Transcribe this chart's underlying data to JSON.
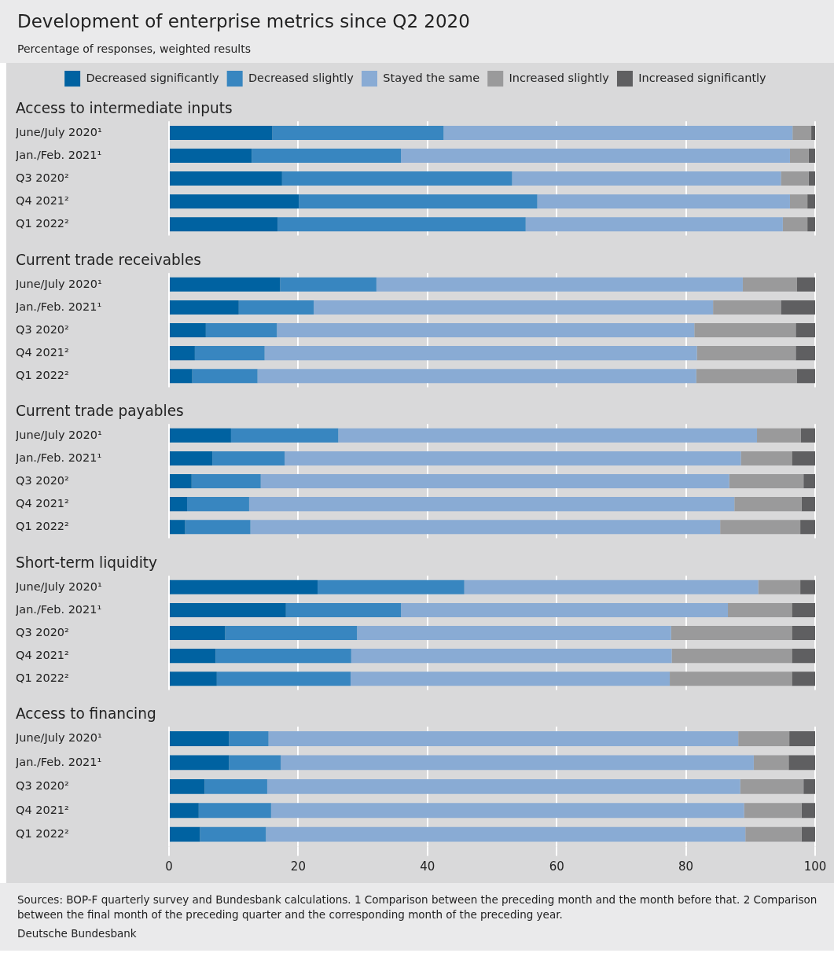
{
  "chart_data": [
    {
      "type": "other",
      "title": "Development of enterprise metrics since Q2 2020",
      "subtitle": "Percentage of responses, weighted results"
    },
    {
      "type": "bar",
      "orientation": "horizontal",
      "stacked": true,
      "title": "Access to intermediate inputs",
      "categories": [
        "June/July 2020¹",
        "Jan./Feb. 2021¹",
        "Q3 2020²",
        "Q4 2021²",
        "Q1 2022²"
      ],
      "xlim": [
        0,
        100
      ],
      "xticks": [
        0,
        20,
        40,
        60,
        80,
        100
      ],
      "grid": "x",
      "tick_labels": "y",
      "legend": "top",
      "series": [
        {
          "name": "Decreased significantly",
          "color": "#0062a1",
          "values": [
            16,
            12.8,
            17.5,
            20.1,
            16.8
          ]
        },
        {
          "name": "Decreased slightly",
          "color": "#3886c0",
          "values": [
            26.5,
            23.1,
            35.6,
            36.9,
            38.4
          ]
        },
        {
          "name": "Stayed the same",
          "color": "#89abd4",
          "values": [
            54,
            60.2,
            41.6,
            39.1,
            39.8
          ]
        },
        {
          "name": "Increased slightly",
          "color": "#9a9a9b",
          "values": [
            2.9,
            2.9,
            4.3,
            2.7,
            3.8
          ]
        },
        {
          "name": "Increased significantly",
          "color": "#5f5f61",
          "values": [
            0.6,
            1,
            1,
            1.2,
            1.2
          ]
        }
      ]
    },
    {
      "type": "bar",
      "orientation": "horizontal",
      "stacked": true,
      "title": "Current trade receivables",
      "categories": [
        "June/July 2020¹",
        "Jan./Feb. 2021¹",
        "Q3 2020²",
        "Q4 2021²",
        "Q1 2022²"
      ],
      "xlim": [
        0,
        100
      ],
      "xticks": [
        0,
        20,
        40,
        60,
        80,
        100
      ],
      "grid": "x",
      "tick_labels": "y",
      "series": [
        {
          "color": "#0062a1",
          "values": [
            17.2,
            10.8,
            5.7,
            4,
            3.6
          ]
        },
        {
          "color": "#3886c0",
          "values": [
            14.9,
            11.6,
            11,
            10.8,
            10.1
          ]
        },
        {
          "color": "#89abd4",
          "values": [
            56.7,
            61.8,
            64.6,
            66.9,
            67.9
          ]
        },
        {
          "color": "#9a9a9b",
          "values": [
            8.4,
            10.5,
            15.7,
            15.3,
            15.6
          ]
        },
        {
          "color": "#5f5f61",
          "values": [
            2.8,
            5.3,
            3,
            3,
            2.8
          ]
        }
      ]
    },
    {
      "type": "bar",
      "orientation": "horizontal",
      "stacked": true,
      "title": "Current trade payables",
      "categories": [
        "June/July 2020¹",
        "Jan./Feb. 2021¹",
        "Q3 2020²",
        "Q4 2021²",
        "Q1 2022²"
      ],
      "xlim": [
        0,
        100
      ],
      "xticks": [
        0,
        20,
        40,
        60,
        80,
        100
      ],
      "grid": "x",
      "tick_labels": "y",
      "series": [
        {
          "color": "#0062a1",
          "values": [
            9.6,
            6.7,
            3.5,
            2.8,
            2.5
          ]
        },
        {
          "color": "#3886c0",
          "values": [
            16.6,
            11.2,
            10.7,
            9.6,
            10.1
          ]
        },
        {
          "color": "#89abd4",
          "values": [
            64.8,
            70.6,
            72.5,
            75.1,
            72.7
          ]
        },
        {
          "color": "#9a9a9b",
          "values": [
            6.8,
            7.9,
            11.5,
            10.4,
            12.4
          ]
        },
        {
          "color": "#5f5f61",
          "values": [
            2.2,
            3.6,
            1.8,
            2.1,
            2.3
          ]
        }
      ]
    },
    {
      "type": "bar",
      "orientation": "horizontal",
      "stacked": true,
      "title": "Short-term liquidity",
      "categories": [
        "June/July 2020¹",
        "Jan./Feb. 2021¹",
        "Q3 2020²",
        "Q4 2021²",
        "Q1 2022²"
      ],
      "xlim": [
        0,
        100
      ],
      "xticks": [
        0,
        20,
        40,
        60,
        80,
        100
      ],
      "grid": "x",
      "tick_labels": "y",
      "series": [
        {
          "color": "#0062a1",
          "values": [
            23,
            18.1,
            8.7,
            7.2,
            7.4
          ]
        },
        {
          "color": "#3886c0",
          "values": [
            22.7,
            17.8,
            20.4,
            21,
            20.7
          ]
        },
        {
          "color": "#89abd4",
          "values": [
            45.5,
            50.6,
            48.6,
            49.6,
            49.4
          ]
        },
        {
          "color": "#9a9a9b",
          "values": [
            6.5,
            9.9,
            18.7,
            18.6,
            18.9
          ]
        },
        {
          "color": "#5f5f61",
          "values": [
            2.3,
            3.6,
            3.6,
            3.6,
            3.6
          ]
        }
      ]
    },
    {
      "type": "bar",
      "orientation": "horizontal",
      "stacked": true,
      "title": "Access to financing",
      "categories": [
        "June/July 2020¹",
        "Jan./Feb. 2021¹",
        "Q3 2020²",
        "Q4 2021²",
        "Q1 2022²"
      ],
      "xlim": [
        0,
        100
      ],
      "xticks": [
        0,
        20,
        40,
        60,
        80,
        100
      ],
      "grid": "x",
      "series": [
        {
          "color": "#0062a1",
          "values": [
            9.3,
            9.3,
            5.5,
            4.6,
            4.8
          ]
        },
        {
          "color": "#3886c0",
          "values": [
            6.1,
            8,
            9.7,
            11.2,
            10.2
          ]
        },
        {
          "color": "#89abd4",
          "values": [
            72.7,
            73.2,
            73.2,
            73.2,
            74.2
          ]
        },
        {
          "color": "#9a9a9b",
          "values": [
            7.9,
            5.4,
            9.8,
            8.9,
            8.7
          ]
        },
        {
          "color": "#5f5f61",
          "values": [
            4,
            4.1,
            1.8,
            2.1,
            2.1
          ]
        }
      ],
      "annotations": [
        "Sources: BOP-F quarterly survey and Bundesbank calculations. 1 Comparison between the preceding month and the month before that. 2 Comparison between the final month of the preceding quarter and the corresponding month of the preceding year.",
        "Deutsche Bundesbank"
      ]
    }
  ]
}
